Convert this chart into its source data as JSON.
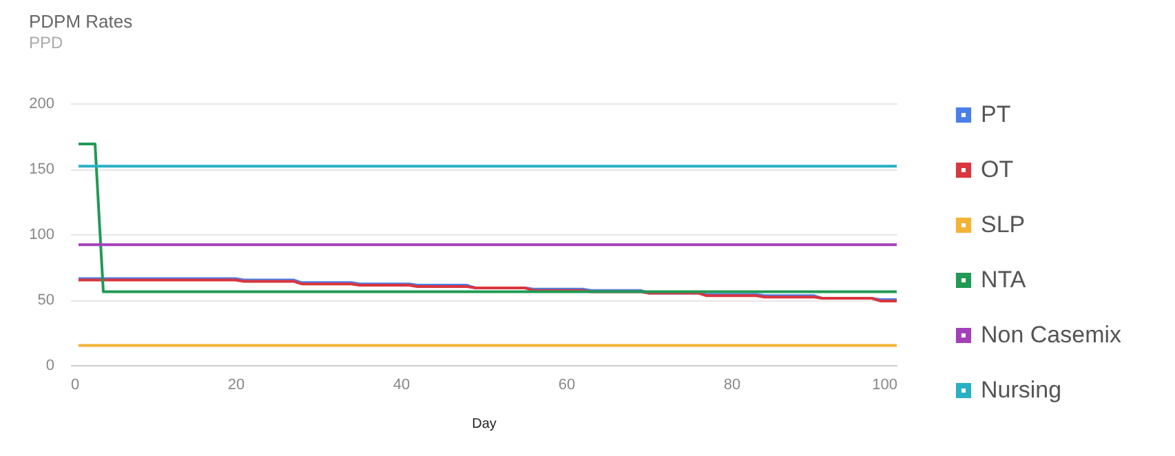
{
  "chart_data": {
    "type": "line",
    "title": "PDPM Rates",
    "subtitle": "PPD",
    "xlabel": "Day",
    "xlim": [
      0,
      100
    ],
    "xticks": [
      0,
      20,
      40,
      60,
      80,
      100
    ],
    "ylim": [
      0,
      200
    ],
    "yticks": [
      0,
      50,
      100,
      150,
      200
    ],
    "grid": "y",
    "legend": "right",
    "line_style": "solid",
    "marker": "none",
    "series": [
      {
        "name": "PT",
        "color": "#4a7fe8",
        "x": [
          1,
          20,
          21,
          27,
          28,
          34,
          35,
          41,
          42,
          48,
          49,
          55,
          56,
          62,
          63,
          69,
          70,
          76,
          77,
          83,
          84,
          90,
          91,
          97,
          98,
          100
        ],
        "values": [
          66,
          66,
          65,
          65,
          63,
          63,
          62,
          62,
          61,
          61,
          59,
          59,
          58,
          58,
          57,
          57,
          55,
          55,
          54,
          54,
          53,
          53,
          51,
          51,
          50,
          50
        ]
      },
      {
        "name": "OT",
        "color": "#d9363e",
        "x": [
          1,
          20,
          21,
          27,
          28,
          34,
          35,
          41,
          42,
          48,
          49,
          55,
          56,
          62,
          63,
          69,
          70,
          76,
          77,
          83,
          84,
          90,
          91,
          97,
          98,
          100
        ],
        "values": [
          65,
          65,
          64,
          64,
          62,
          62,
          61,
          61,
          60,
          60,
          59,
          59,
          57,
          57,
          56,
          56,
          55,
          55,
          53,
          53,
          52,
          52,
          51,
          51,
          49,
          49
        ]
      },
      {
        "name": "SLP",
        "color": "#f2b233",
        "x": [
          1,
          100
        ],
        "values": [
          15,
          15
        ]
      },
      {
        "name": "NTA",
        "color": "#209a55",
        "x": [
          1,
          3,
          4,
          100
        ],
        "values": [
          169,
          169,
          56,
          56
        ]
      },
      {
        "name": "Non Casemix",
        "color": "#a43fb9",
        "x": [
          1,
          100
        ],
        "values": [
          92,
          92
        ]
      },
      {
        "name": "Nursing",
        "color": "#2ab0c4",
        "x": [
          1,
          100
        ],
        "values": [
          152,
          152
        ]
      }
    ]
  }
}
